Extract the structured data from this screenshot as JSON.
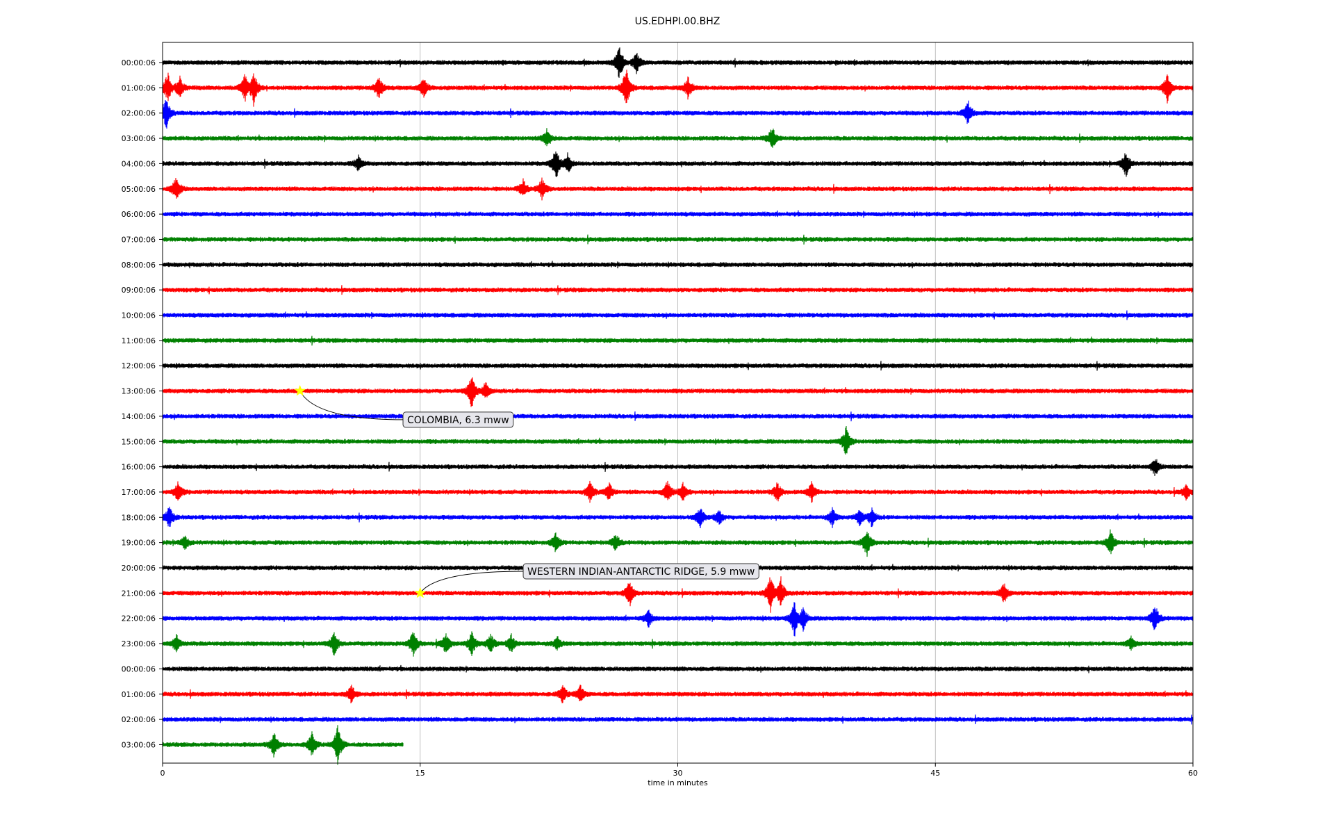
{
  "chart_data": {
    "type": "line",
    "title": "US.EDHPI.00.BHZ",
    "xlabel": "time in minutes",
    "ylabel": "",
    "xlim": [
      0,
      60
    ],
    "xticks": [
      "0",
      "15",
      "30",
      "45",
      "60"
    ],
    "xtick_values": [
      0,
      15,
      30,
      45,
      60
    ],
    "grid": "vertical",
    "color_cycle": [
      "#000000",
      "#ff0000",
      "#0000ff",
      "#008000"
    ],
    "rows": [
      {
        "label": "00:00:06",
        "end": 60,
        "bursts": [
          [
            26.6,
            1.6
          ],
          [
            27.6,
            0.9
          ]
        ]
      },
      {
        "label": "01:00:06",
        "end": 60,
        "bursts": [
          [
            0.3,
            1.4
          ],
          [
            1.0,
            1.0
          ],
          [
            4.8,
            1.3
          ],
          [
            5.3,
            1.6
          ],
          [
            12.6,
            1.1
          ],
          [
            15.2,
            0.9
          ],
          [
            27.0,
            2.0
          ],
          [
            30.6,
            1.0
          ],
          [
            58.5,
            1.4
          ]
        ]
      },
      {
        "label": "02:00:06",
        "end": 60,
        "bursts": [
          [
            0.2,
            1.6
          ],
          [
            46.9,
            1.2
          ]
        ]
      },
      {
        "label": "03:00:06",
        "end": 60,
        "bursts": [
          [
            22.4,
            0.9
          ],
          [
            35.5,
            1.1
          ]
        ]
      },
      {
        "label": "04:00:06",
        "end": 60,
        "bursts": [
          [
            11.4,
            0.7
          ],
          [
            22.9,
            1.5
          ],
          [
            23.6,
            0.9
          ],
          [
            56.1,
            1.2
          ]
        ]
      },
      {
        "label": "05:00:06",
        "end": 60,
        "bursts": [
          [
            0.8,
            1.2
          ],
          [
            21.0,
            0.8
          ],
          [
            22.1,
            1.0
          ]
        ]
      },
      {
        "label": "06:00:06",
        "end": 60,
        "bursts": []
      },
      {
        "label": "07:00:06",
        "end": 60,
        "bursts": []
      },
      {
        "label": "08:00:06",
        "end": 60,
        "bursts": []
      },
      {
        "label": "09:00:06",
        "end": 60,
        "bursts": []
      },
      {
        "label": "10:00:06",
        "end": 60,
        "bursts": []
      },
      {
        "label": "11:00:06",
        "end": 60,
        "bursts": []
      },
      {
        "label": "12:00:06",
        "end": 60,
        "bursts": []
      },
      {
        "label": "13:00:06",
        "end": 60,
        "bursts": [
          [
            18.0,
            1.6
          ],
          [
            18.8,
            0.8
          ]
        ]
      },
      {
        "label": "14:00:06",
        "end": 60,
        "bursts": []
      },
      {
        "label": "15:00:06",
        "end": 60,
        "bursts": [
          [
            39.8,
            1.4
          ]
        ]
      },
      {
        "label": "16:00:06",
        "end": 60,
        "bursts": [
          [
            57.8,
            0.9
          ]
        ]
      },
      {
        "label": "17:00:06",
        "end": 60,
        "bursts": [
          [
            0.9,
            1.0
          ],
          [
            24.9,
            1.0
          ],
          [
            26.0,
            0.8
          ],
          [
            29.4,
            1.0
          ],
          [
            30.3,
            0.8
          ],
          [
            35.8,
            0.9
          ],
          [
            37.8,
            0.9
          ],
          [
            59.6,
            0.7
          ]
        ]
      },
      {
        "label": "18:00:06",
        "end": 60,
        "bursts": [
          [
            0.4,
            1.1
          ],
          [
            31.3,
            1.0
          ],
          [
            32.4,
            0.7
          ],
          [
            39.0,
            0.8
          ],
          [
            40.6,
            0.8
          ],
          [
            41.3,
            0.9
          ]
        ]
      },
      {
        "label": "19:00:06",
        "end": 60,
        "bursts": [
          [
            1.3,
            0.6
          ],
          [
            22.9,
            0.9
          ],
          [
            26.4,
            0.8
          ],
          [
            41.0,
            1.3
          ],
          [
            55.2,
            1.1
          ]
        ]
      },
      {
        "label": "20:00:06",
        "end": 60,
        "bursts": []
      },
      {
        "label": "21:00:06",
        "end": 60,
        "bursts": [
          [
            27.2,
            1.2
          ],
          [
            35.4,
            1.7
          ],
          [
            36.0,
            1.4
          ],
          [
            49.0,
            0.9
          ]
        ]
      },
      {
        "label": "22:00:06",
        "end": 60,
        "bursts": [
          [
            28.3,
            0.8
          ],
          [
            36.8,
            1.6
          ],
          [
            37.3,
            1.1
          ],
          [
            57.8,
            1.3
          ]
        ]
      },
      {
        "label": "23:00:06",
        "end": 60,
        "bursts": [
          [
            0.8,
            0.8
          ],
          [
            10.0,
            1.1
          ],
          [
            14.6,
            1.2
          ],
          [
            16.5,
            1.0
          ],
          [
            18.0,
            1.1
          ],
          [
            19.1,
            0.9
          ],
          [
            20.3,
            0.8
          ],
          [
            23.0,
            0.6
          ],
          [
            56.4,
            0.6
          ]
        ]
      },
      {
        "label": "00:00:06",
        "end": 60,
        "bursts": []
      },
      {
        "label": "01:00:06",
        "end": 60,
        "bursts": [
          [
            11.0,
            0.8
          ],
          [
            23.3,
            0.8
          ],
          [
            24.3,
            0.9
          ]
        ]
      },
      {
        "label": "02:00:06",
        "end": 60,
        "bursts": []
      },
      {
        "label": "03:00:06",
        "end": 14.0,
        "bursts": [
          [
            6.5,
            1.2
          ],
          [
            8.7,
            1.1
          ],
          [
            10.2,
            1.8
          ]
        ]
      }
    ],
    "events": [
      {
        "label": "COLOMBIA, 6.3 mww",
        "row": 13,
        "x": 8.0,
        "label_row": 14,
        "label_x": 14.0
      },
      {
        "label": "WESTERN INDIAN-ANTARCTIC RIDGE, 5.9 mww",
        "row": 21,
        "x": 15.0,
        "label_row": 20,
        "label_x": 21.0
      }
    ],
    "event_marker_color": "#ffff00"
  }
}
